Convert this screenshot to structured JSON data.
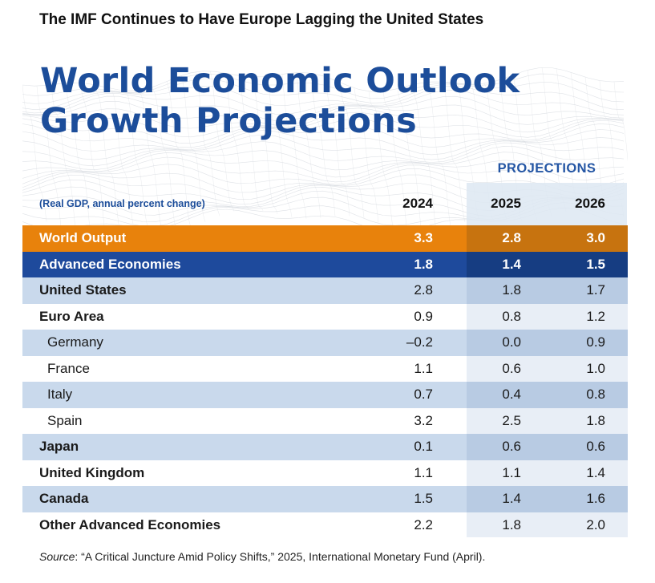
{
  "heading": "The IMF Continues to Have Europe Lagging the United States",
  "title_line1": "World Economic Outlook",
  "title_line2": "Growth Projections",
  "projections_label": "PROJECTIONS",
  "subtitle": "(Real GDP, annual percent change)",
  "source_label": "Source",
  "source_text": ": “A Critical Juncture Amid Policy Shifts,” 2025, International Monetary Fund (April).",
  "colors": {
    "title_blue": "#1c4d9a",
    "orange": "#e8820c",
    "orange_dark": "#c7730f",
    "navy": "#1e4a9c",
    "navy_dark": "#163d82",
    "light_blue": "#c9d9ec",
    "pale_blue": "#e8eef6"
  },
  "chart_data": {
    "type": "table",
    "columns": [
      "2024",
      "2025",
      "2026"
    ],
    "rows": [
      {
        "name": "World Output",
        "values": [
          "3.3",
          "2.8",
          "3.0"
        ],
        "style": "orange",
        "indent": false
      },
      {
        "name": "Advanced Economies",
        "values": [
          "1.8",
          "1.4",
          "1.5"
        ],
        "style": "navy",
        "indent": false
      },
      {
        "name": "United States",
        "values": [
          "2.8",
          "1.8",
          "1.7"
        ],
        "style": "light",
        "indent": false
      },
      {
        "name": "Euro Area",
        "values": [
          "0.9",
          "0.8",
          "1.2"
        ],
        "style": "plain",
        "indent": false
      },
      {
        "name": "Germany",
        "values": [
          "–0.2",
          "0.0",
          "0.9"
        ],
        "style": "light",
        "indent": true
      },
      {
        "name": "France",
        "values": [
          "1.1",
          "0.6",
          "1.0"
        ],
        "style": "plain",
        "indent": true
      },
      {
        "name": "Italy",
        "values": [
          "0.7",
          "0.4",
          "0.8"
        ],
        "style": "light",
        "indent": true
      },
      {
        "name": "Spain",
        "values": [
          "3.2",
          "2.5",
          "1.8"
        ],
        "style": "plain",
        "indent": true
      },
      {
        "name": "Japan",
        "values": [
          "0.1",
          "0.6",
          "0.6"
        ],
        "style": "light",
        "indent": false
      },
      {
        "name": "United Kingdom",
        "values": [
          "1.1",
          "1.1",
          "1.4"
        ],
        "style": "plain",
        "indent": false
      },
      {
        "name": "Canada",
        "values": [
          "1.5",
          "1.4",
          "1.6"
        ],
        "style": "light",
        "indent": false
      },
      {
        "name": "Other Advanced Economies",
        "values": [
          "2.2",
          "1.8",
          "2.0"
        ],
        "style": "plain",
        "indent": false
      }
    ]
  }
}
